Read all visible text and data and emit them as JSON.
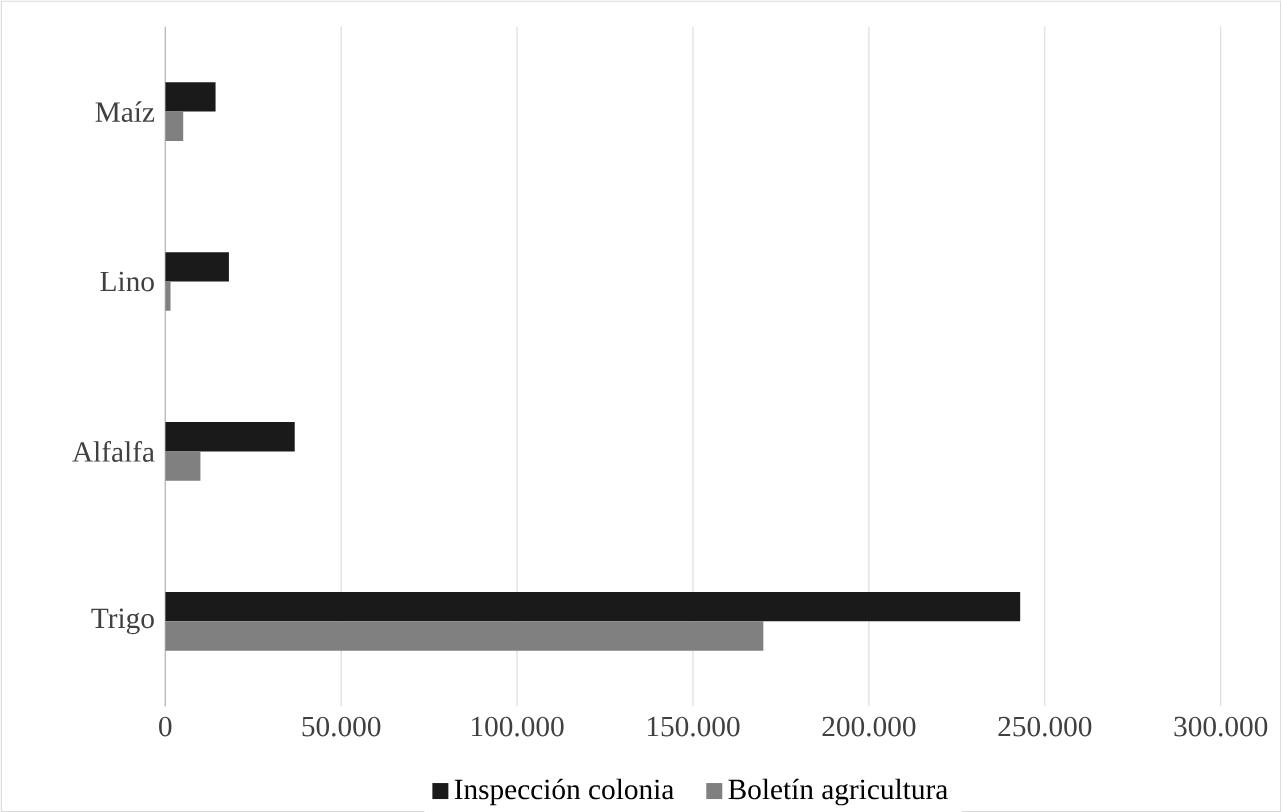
{
  "chart_data": {
    "type": "bar",
    "orientation": "horizontal",
    "categories": [
      "Maíz",
      "Lino",
      "Alfalfa",
      "Trigo"
    ],
    "series": [
      {
        "name": "Inspección colonia",
        "color": "#1a1a1a",
        "values": [
          14300,
          18100,
          36800,
          243000
        ]
      },
      {
        "name": "Boletín agricultura",
        "color": "#808080",
        "values": [
          5100,
          1500,
          10000,
          170000
        ]
      }
    ],
    "xlim": [
      0,
      300000
    ],
    "xticks": [
      {
        "value": 0,
        "label": "0"
      },
      {
        "value": 50000,
        "label": "50.000"
      },
      {
        "value": 100000,
        "label": "100.000"
      },
      {
        "value": 150000,
        "label": "150.000"
      },
      {
        "value": 200000,
        "label": "200.000"
      },
      {
        "value": 250000,
        "label": "250.000"
      },
      {
        "value": 300000,
        "label": "300.000"
      }
    ],
    "grid": "x",
    "legend": "bottom"
  }
}
